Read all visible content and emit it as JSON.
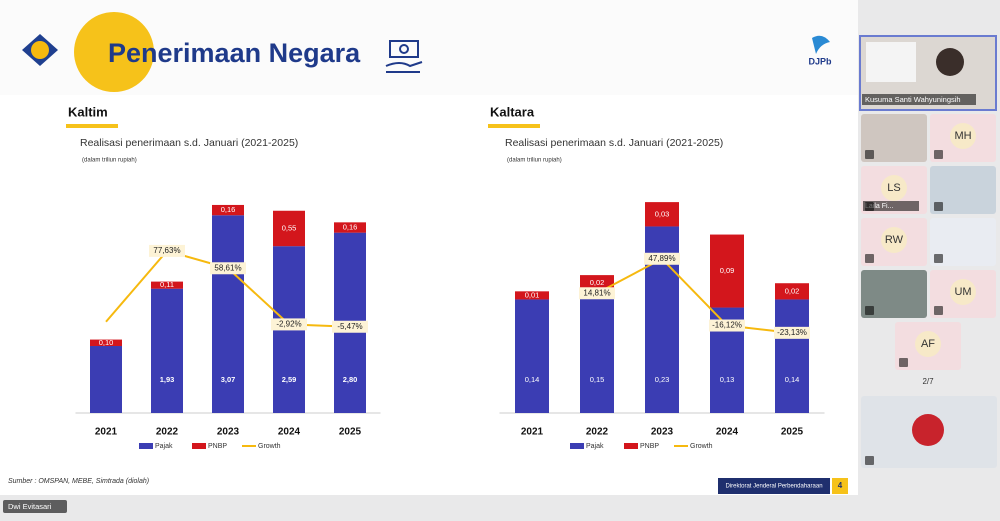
{
  "header": {
    "title": "Penerimaan Negara",
    "logo": "DJPb"
  },
  "chart_data": [
    {
      "type": "bar",
      "stacked": true,
      "title": "Kaltim",
      "subtitle": "Realisasi penerimaan s.d. Januari (2021-2025)",
      "note": "(dalam triliun rupiah)",
      "categories": [
        "2021",
        "2022",
        "2023",
        "2024",
        "2025"
      ],
      "ylim": [
        0,
        3.4
      ],
      "y2lim": [
        -100,
        140
      ],
      "series": [
        {
          "name": "Pajak",
          "color": "#3b3db3",
          "values": [
            1.04,
            1.93,
            3.07,
            2.59,
            2.8
          ],
          "value_labels": [
            null,
            "1,93",
            "3,07",
            "2,59",
            "2,80"
          ]
        },
        {
          "name": "PNBP",
          "color": "#d3161c",
          "values": [
            0.1,
            0.11,
            0.16,
            0.55,
            0.16
          ],
          "value_labels": [
            "0,10",
            "0,11",
            "0,16",
            "0,55",
            "0,16"
          ]
        },
        {
          "name": "Growth",
          "type": "line",
          "axis": "y2",
          "color": "#f6b90f",
          "values": [
            0,
            77.63,
            58.61,
            -2.92,
            -5.47
          ],
          "value_labels": [
            null,
            "77,63%",
            "58,61%",
            "-2,92%",
            "-5,47%"
          ]
        }
      ]
    },
    {
      "type": "bar",
      "stacked": true,
      "title": "Kaltara",
      "subtitle": "Realisasi penerimaan s.d. Januari (2021-2025)",
      "note": "(dalam triliun rupiah)",
      "categories": [
        "2021",
        "2022",
        "2023",
        "2024",
        "2025"
      ],
      "ylim": [
        0,
        0.27
      ],
      "y2lim": [
        -100,
        110
      ],
      "series": [
        {
          "name": "Pajak",
          "color": "#3b3db3",
          "values": [
            0.14,
            0.15,
            0.23,
            0.13,
            0.14
          ],
          "value_labels": [
            "0,14",
            "0,15",
            "0,23",
            "0,13",
            "0,14"
          ]
        },
        {
          "name": "PNBP",
          "color": "#d3161c",
          "values": [
            0.01,
            0.02,
            0.03,
            0.09,
            0.02
          ],
          "value_labels": [
            "0,01",
            "0,02",
            "0,03",
            "0,09",
            "0,02"
          ]
        },
        {
          "name": "Growth",
          "type": "line",
          "axis": "y2",
          "color": "#f6b90f",
          "values": [
            null,
            14.81,
            47.89,
            -16.12,
            -23.13
          ],
          "value_labels": [
            null,
            "14,81%",
            "47,89%",
            "-16,12%",
            "-23,13%"
          ]
        }
      ]
    }
  ],
  "source": "Sumber : OMSPAN, MEBE, Simtrada (diolah)",
  "footer": {
    "org": "Direktorat Jenderal Perbendaharaan",
    "page": 4
  },
  "participants": {
    "main": "Kusuma Santi Wahyuningsih",
    "tiles": [
      "MH",
      "LS",
      "Laila Fi...",
      "RW",
      "UM",
      "AF"
    ],
    "pager": "2/7"
  },
  "presenter": "Dwi Evitasari"
}
